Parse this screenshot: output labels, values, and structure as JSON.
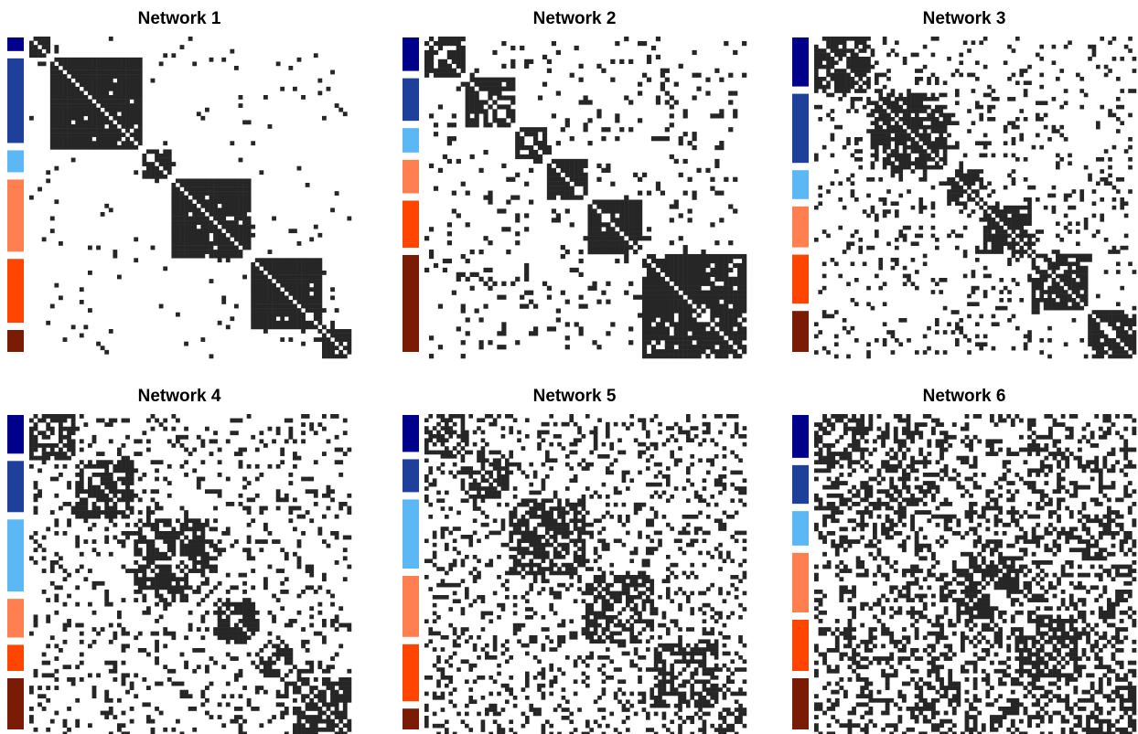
{
  "chart_data": [
    {
      "type": "heatmap",
      "title": "Network 1",
      "groups": [
        5,
        22,
        7,
        19,
        17,
        7
      ],
      "p_in": 0.97,
      "p_out": 0.04,
      "seed": 101
    },
    {
      "type": "heatmap",
      "title": "Network 2",
      "groups": [
        9,
        11,
        7,
        9,
        12,
        23
      ],
      "p_in": 0.9,
      "p_out": 0.09,
      "seed": 202
    },
    {
      "type": "heatmap",
      "title": "Network 3",
      "groups": [
        14,
        19,
        9,
        12,
        14,
        12
      ],
      "p_in": 0.82,
      "p_out": 0.13,
      "seed": 303
    },
    {
      "type": "heatmap",
      "title": "Network 4",
      "groups": [
        11,
        14,
        19,
        11,
        8,
        14
      ],
      "p_in": 0.75,
      "p_out": 0.17,
      "seed": 404
    },
    {
      "type": "heatmap",
      "title": "Network 5",
      "groups": [
        11,
        10,
        19,
        17,
        16,
        7
      ],
      "p_in": 0.68,
      "p_out": 0.22,
      "seed": 505
    },
    {
      "type": "heatmap",
      "title": "Network 6",
      "groups": [
        12,
        11,
        10,
        16,
        14,
        14
      ],
      "p_in": 0.6,
      "p_out": 0.34,
      "seed": 606
    }
  ],
  "colors": {
    "cell": "#262626",
    "groups": [
      "#00008B",
      "#1E3F9A",
      "#5BB8F5",
      "#FF7F50",
      "#FF4500",
      "#7A1B05"
    ]
  }
}
